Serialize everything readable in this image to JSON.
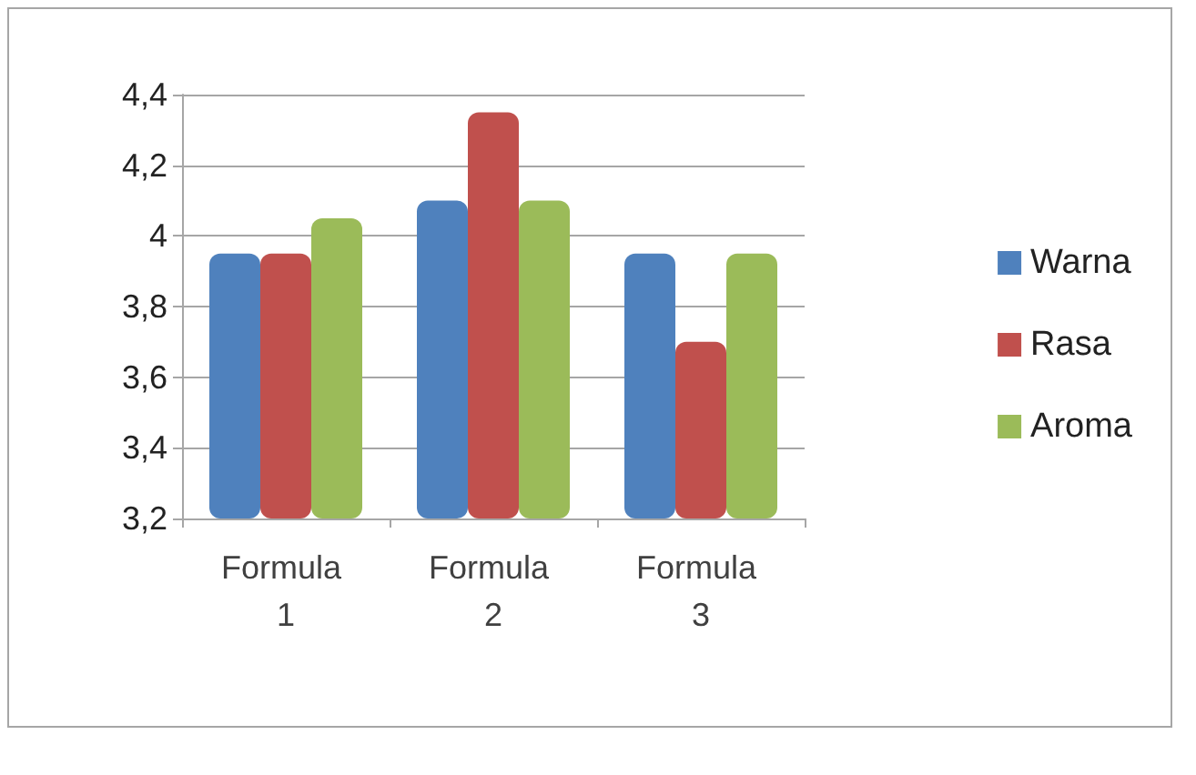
{
  "chart_data": {
    "type": "bar",
    "categories": [
      "Formula 1",
      "Formula 2",
      "Formula 3"
    ],
    "series": [
      {
        "name": "Warna",
        "color": "#4f81bd",
        "values": [
          3.95,
          4.1,
          3.95
        ]
      },
      {
        "name": "Rasa",
        "color": "#c0504d",
        "values": [
          3.95,
          4.35,
          3.7
        ]
      },
      {
        "name": "Aroma",
        "color": "#9bbb59",
        "values": [
          4.05,
          4.1,
          3.95
        ]
      }
    ],
    "ylim": [
      3.2,
      4.4
    ],
    "yticks": [
      {
        "value": 3.2,
        "label": "3,2"
      },
      {
        "value": 3.4,
        "label": "3,4"
      },
      {
        "value": 3.6,
        "label": "3,6"
      },
      {
        "value": 3.8,
        "label": "3,8"
      },
      4,
      {
        "value": 4.2,
        "label": "4,2"
      },
      {
        "value": 4.4,
        "label": "4,4"
      }
    ],
    "grid": "y",
    "legend": "right"
  }
}
